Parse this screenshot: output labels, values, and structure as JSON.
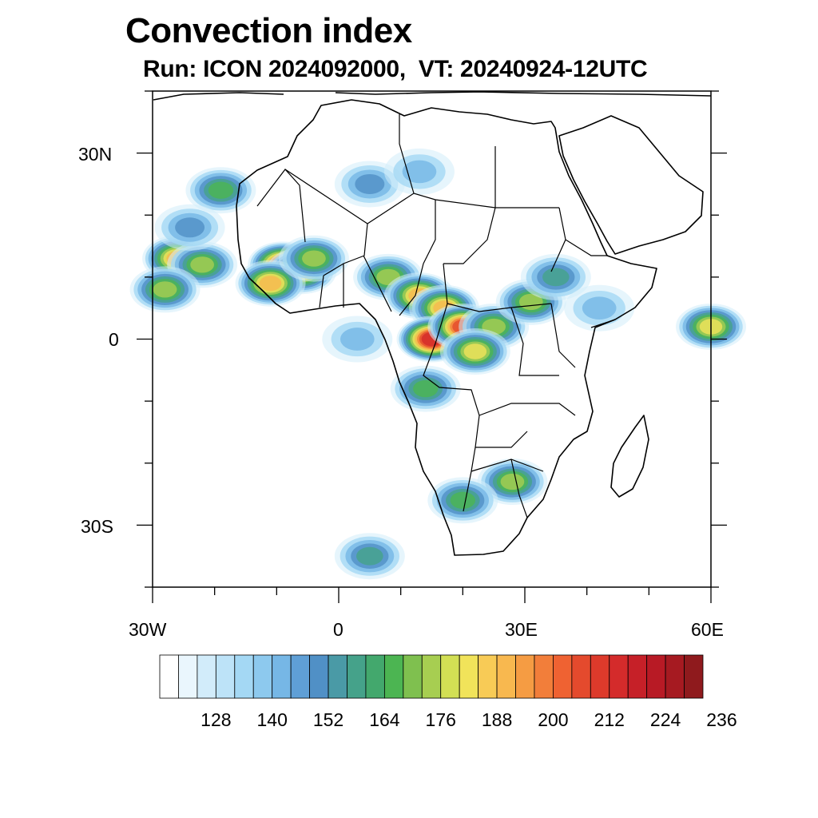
{
  "title": "Convection index",
  "subtitle": "Run: ICON 2024092000,  VT: 20240924-12UTC",
  "axes": {
    "lat_labels": [
      "30N",
      "0",
      "30S"
    ],
    "lon_labels": [
      "30W",
      "0",
      "30E",
      "60E"
    ],
    "lat_range": [
      -40,
      40
    ],
    "lon_range": [
      -30,
      60
    ]
  },
  "colorbar": {
    "colors": [
      "#ffffff",
      "#eaf6fd",
      "#d2ecfa",
      "#bde3f8",
      "#a4d8f4",
      "#8dc9ee",
      "#76b7e6",
      "#5f9fd6",
      "#5090c6",
      "#4a9aa6",
      "#45a28a",
      "#43a86d",
      "#4cb552",
      "#7fc04f",
      "#a7ce51",
      "#d2df54",
      "#f1e35a",
      "#f8cb56",
      "#f8b84f",
      "#f59c43",
      "#f27e3a",
      "#ef6232",
      "#e44a2d",
      "#dd3a2b",
      "#d42b2b",
      "#c62028",
      "#b81a25",
      "#a61a21",
      "#8f1a1d"
    ],
    "tick_labels": [
      "128",
      "140",
      "152",
      "164",
      "176",
      "188",
      "200",
      "212",
      "224",
      "236"
    ]
  },
  "cells": [
    {
      "lon": -26,
      "lat": 13,
      "v": 185
    },
    {
      "lon": -22,
      "lat": 12,
      "v": 175
    },
    {
      "lon": -28,
      "lat": 8,
      "v": 170
    },
    {
      "lon": -19,
      "lat": 24,
      "v": 165
    },
    {
      "lon": -24,
      "lat": 18,
      "v": 150
    },
    {
      "lon": -9,
      "lat": 12,
      "v": 200
    },
    {
      "lon": -6,
      "lat": 11,
      "v": 190
    },
    {
      "lon": -11,
      "lat": 9,
      "v": 185
    },
    {
      "lon": -4,
      "lat": 13,
      "v": 175
    },
    {
      "lon": 8,
      "lat": 10,
      "v": 175
    },
    {
      "lon": 13,
      "lat": 7,
      "v": 190
    },
    {
      "lon": 17,
      "lat": 5,
      "v": 185
    },
    {
      "lon": 15,
      "lat": 0,
      "v": 210
    },
    {
      "lon": 20,
      "lat": 2,
      "v": 200
    },
    {
      "lon": 25,
      "lat": 2,
      "v": 175
    },
    {
      "lon": 22,
      "lat": -2,
      "v": 180
    },
    {
      "lon": 14,
      "lat": -8,
      "v": 165
    },
    {
      "lon": 31,
      "lat": 6,
      "v": 170
    },
    {
      "lon": 35,
      "lat": 10,
      "v": 155
    },
    {
      "lon": 28,
      "lat": -23,
      "v": 170
    },
    {
      "lon": 20,
      "lat": -26,
      "v": 160
    },
    {
      "lon": 5,
      "lat": 25,
      "v": 150
    },
    {
      "lon": 13,
      "lat": 27,
      "v": 140
    },
    {
      "lon": 60,
      "lat": 2,
      "v": 180
    },
    {
      "lon": 5,
      "lat": -35,
      "v": 155
    },
    {
      "lon": 3,
      "lat": 0,
      "v": 140
    },
    {
      "lon": 42,
      "lat": 5,
      "v": 140
    }
  ]
}
